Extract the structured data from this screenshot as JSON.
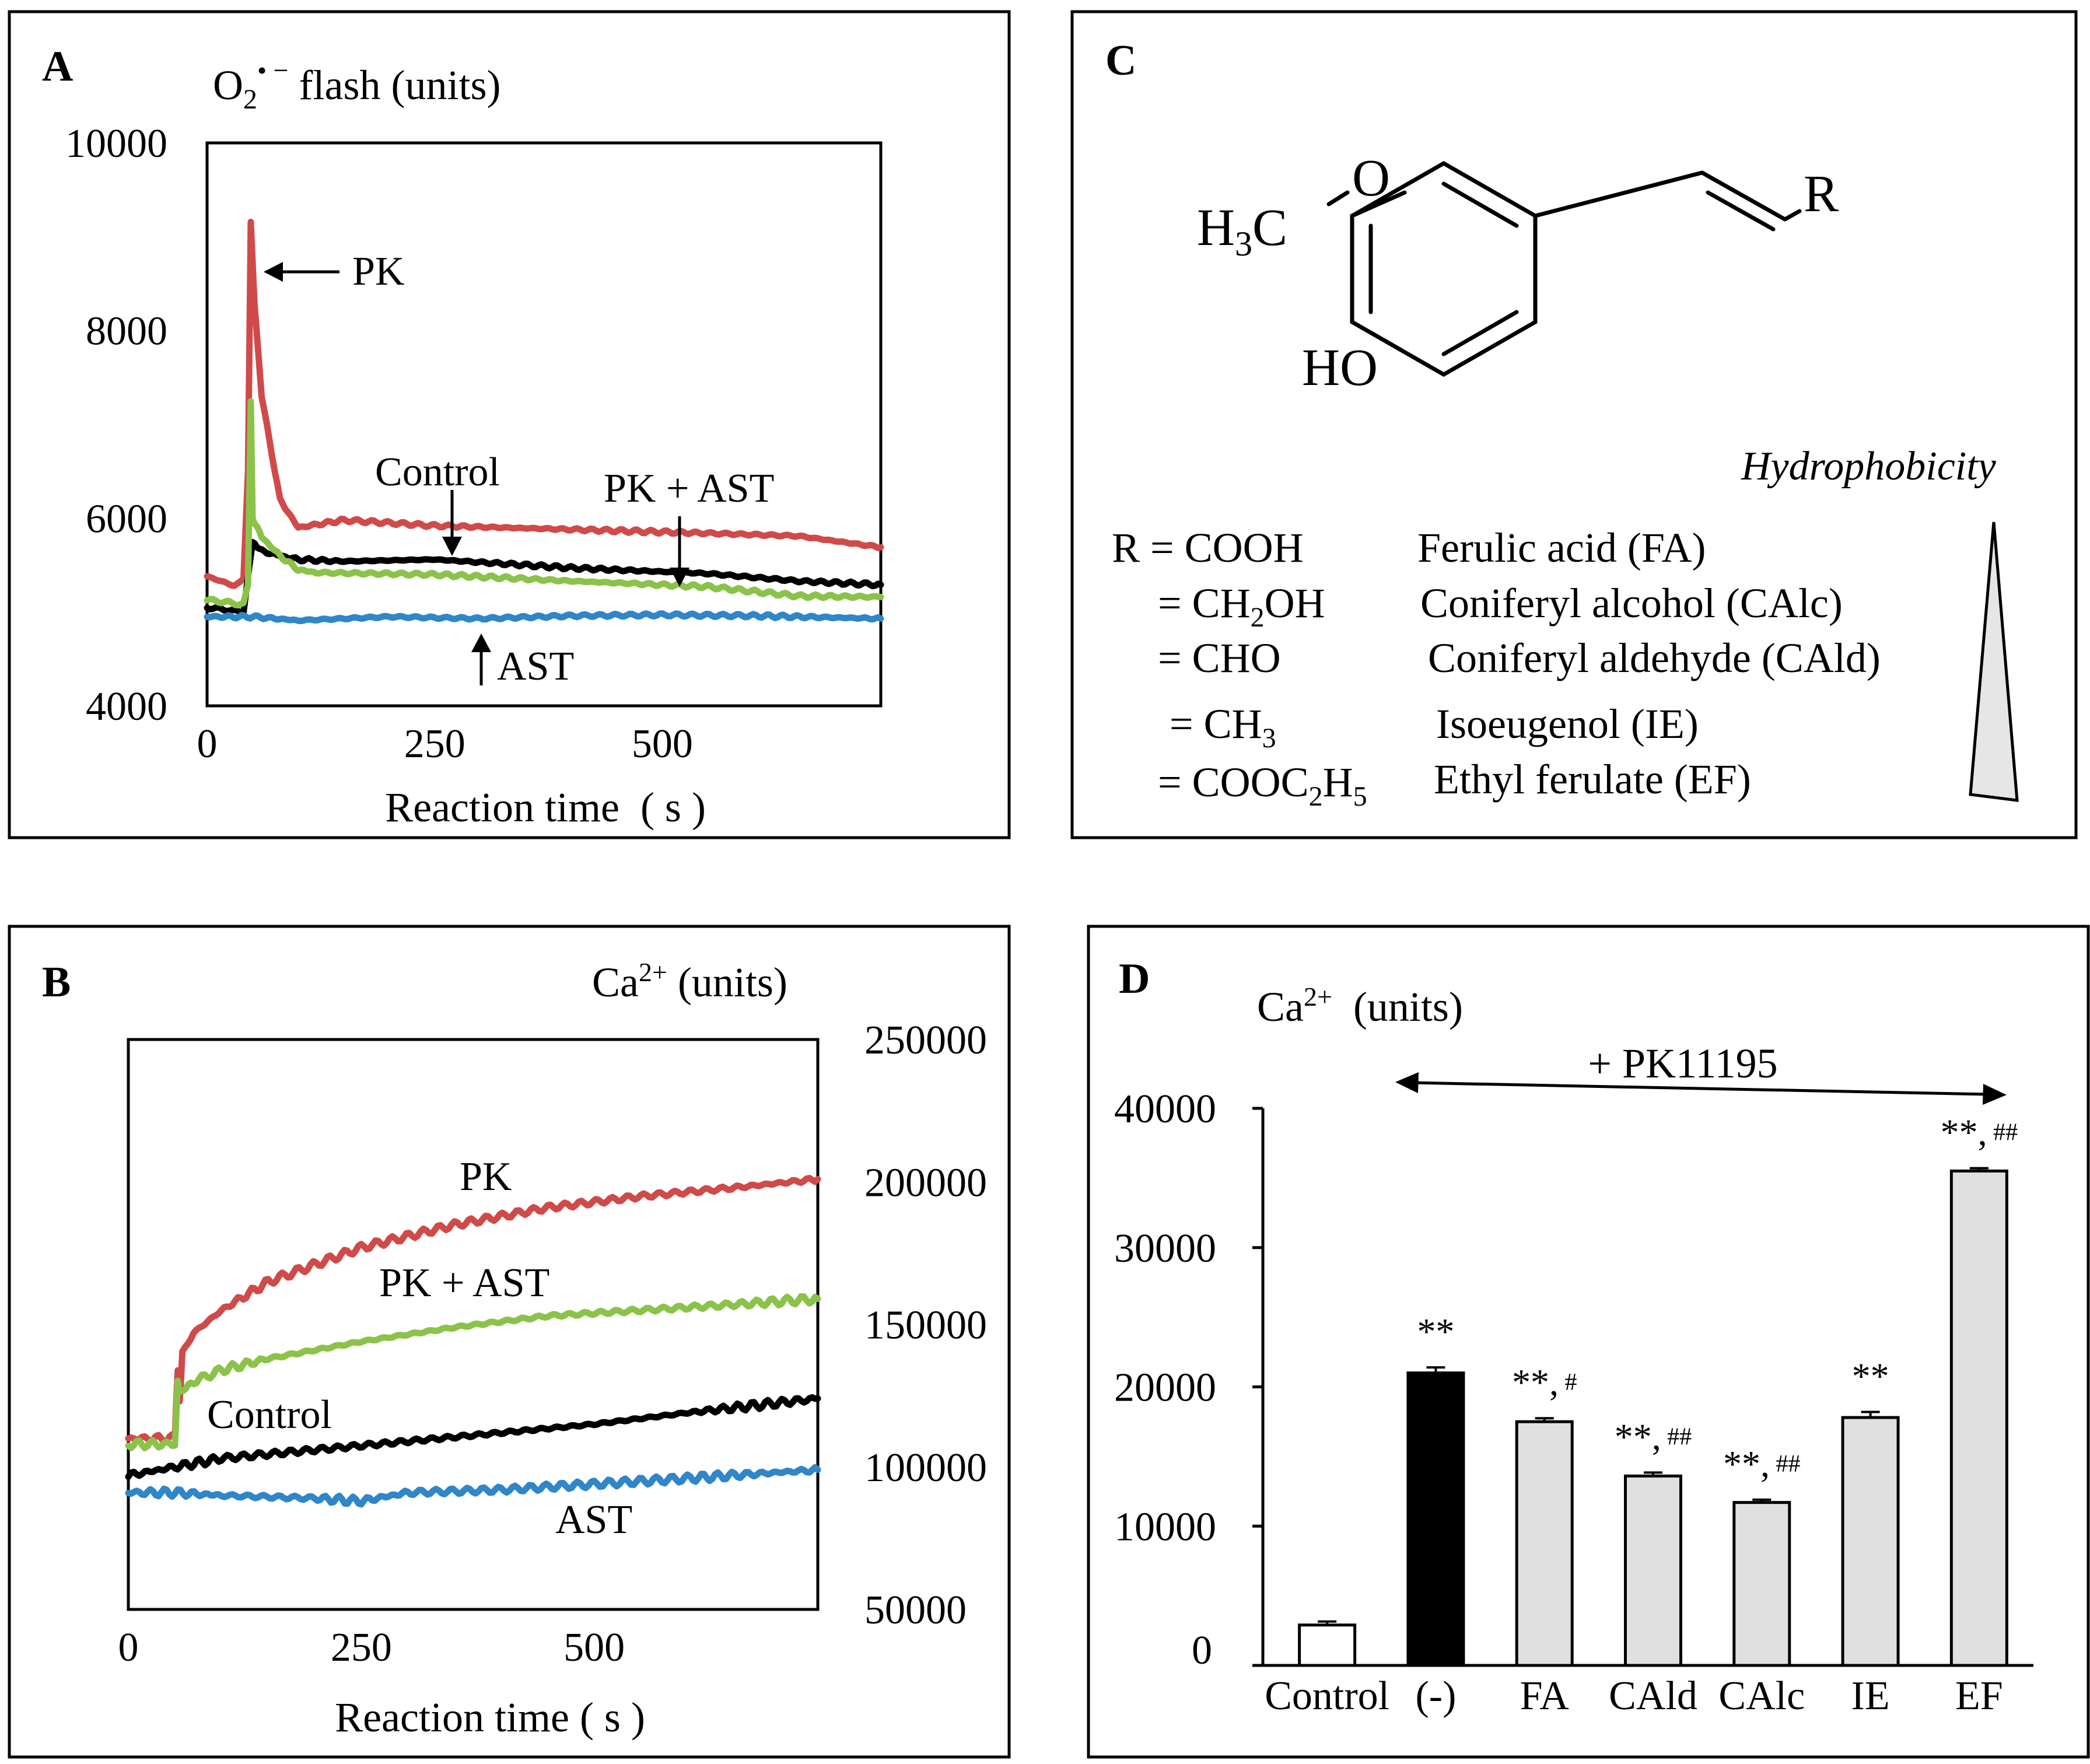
{
  "colors": {
    "pk": "#d04a4a",
    "pk_ast": "#8bc34a",
    "control": "#000000",
    "ast": "#2f86c8",
    "bar_light": "#e0e0e0",
    "bar_dark": "#000000",
    "bar_control": "#ffffff"
  },
  "panels": {
    "A": {
      "letter": "A"
    },
    "B": {
      "letter": "B"
    },
    "C": {
      "letter": "C"
    },
    "D": {
      "letter": "D"
    }
  },
  "chart_data": [
    {
      "panel": "A",
      "type": "line",
      "ylabel_parts": {
        "main": "O",
        "sub": "2",
        "sup": "• −",
        "rest": " flash (units)"
      },
      "xlabel": "Reaction time  ( s )",
      "xlim": [
        0,
        740
      ],
      "ylim": [
        4000,
        10000
      ],
      "xticks": [
        "0",
        "250",
        "500"
      ],
      "xtick_values": [
        0,
        250,
        500
      ],
      "yticks": [
        "4000",
        "6000",
        "8000",
        "10000"
      ],
      "ytick_values": [
        4000,
        6000,
        8000,
        10000
      ],
      "series": [
        {
          "name": "PK",
          "color": "#d04a4a",
          "x": [
            0,
            30,
            40,
            45,
            48,
            52,
            60,
            80,
            100,
            150,
            250,
            400,
            550,
            650,
            740
          ],
          "y": [
            5380,
            5280,
            5350,
            6500,
            9150,
            8300,
            7300,
            6200,
            5900,
            5980,
            5920,
            5880,
            5840,
            5810,
            5690
          ]
        },
        {
          "name": "Control",
          "color": "#000000",
          "x": [
            0,
            40,
            46,
            50,
            55,
            60,
            80,
            100,
            150,
            250,
            400,
            550,
            650,
            740
          ],
          "y": [
            5050,
            5000,
            5450,
            5750,
            5700,
            5650,
            5600,
            5560,
            5540,
            5560,
            5470,
            5410,
            5330,
            5290
          ]
        },
        {
          "name": "PK + AST",
          "color": "#8bc34a",
          "x": [
            0,
            40,
            45,
            48,
            50,
            55,
            60,
            80,
            100,
            120,
            250,
            400,
            550,
            650,
            740
          ],
          "y": [
            5130,
            5080,
            5300,
            7250,
            6000,
            5900,
            5800,
            5600,
            5450,
            5420,
            5400,
            5330,
            5270,
            5170,
            5160
          ]
        },
        {
          "name": "AST",
          "color": "#2f86c8",
          "x": [
            0,
            50,
            100,
            200,
            300,
            400,
            500,
            600,
            740
          ],
          "y": [
            4950,
            4950,
            4910,
            4950,
            4930,
            4960,
            4970,
            4960,
            4930
          ]
        }
      ],
      "annotations": [
        "PK",
        "Control",
        "PK + AST",
        "AST"
      ]
    },
    {
      "panel": "B",
      "type": "line",
      "ylabel_parts": {
        "main": "Ca",
        "sup": "2+",
        "rest": " (units)"
      },
      "xlabel": "Reaction time ( s )",
      "xlim": [
        0,
        740
      ],
      "ylim": [
        50000,
        250000
      ],
      "xticks": [
        "0",
        "250",
        "500"
      ],
      "xtick_values": [
        0,
        250,
        500
      ],
      "yticks": [
        "50000",
        "100000",
        "150000",
        "200000",
        "250000"
      ],
      "ytick_values": [
        50000,
        100000,
        150000,
        200000,
        250000
      ],
      "series": [
        {
          "name": "PK",
          "color": "#d04a4a",
          "x": [
            0,
            50,
            53,
            55,
            58,
            70,
            100,
            150,
            250,
            350,
            450,
            550,
            650,
            740
          ],
          "y": [
            110000,
            110000,
            135000,
            123000,
            140000,
            147000,
            155000,
            165000,
            177000,
            185000,
            191000,
            195000,
            198000,
            201000
          ]
        },
        {
          "name": "PK + AST",
          "color": "#8bc34a",
          "x": [
            0,
            50,
            53,
            56,
            70,
            100,
            150,
            250,
            350,
            450,
            550,
            650,
            740
          ],
          "y": [
            108000,
            108000,
            130000,
            126000,
            130000,
            134000,
            138000,
            144000,
            149000,
            153000,
            155000,
            157000,
            159000
          ]
        },
        {
          "name": "Control",
          "color": "#000000",
          "x": [
            0,
            50,
            100,
            200,
            300,
            400,
            500,
            600,
            740
          ],
          "y": [
            97000,
            100000,
            103000,
            106000,
            109000,
            112000,
            115000,
            119000,
            124000
          ]
        },
        {
          "name": "AST",
          "color": "#2f86c8",
          "x": [
            0,
            50,
            100,
            200,
            250,
            300,
            400,
            500,
            600,
            740
          ],
          "y": [
            91000,
            91000,
            90000,
            89000,
            88000,
            91000,
            92000,
            94000,
            96000,
            99000
          ]
        }
      ],
      "annotations": [
        "PK",
        "PK + AST",
        "Control",
        "AST"
      ]
    },
    {
      "panel": "D",
      "type": "bar",
      "ylabel_parts": {
        "main": "Ca",
        "sup": "2+",
        "rest": "  (units)"
      },
      "categories": [
        "Control",
        "(-)",
        "FA",
        "CAld",
        "CAlc",
        "IE",
        "EF"
      ],
      "values": [
        2900,
        21000,
        17500,
        13600,
        11700,
        17800,
        35500
      ],
      "errors": [
        250,
        400,
        250,
        250,
        200,
        400,
        200
      ],
      "bar_colors": [
        "#ffffff",
        "#000000",
        "#e0e0e0",
        "#e0e0e0",
        "#e0e0e0",
        "#e0e0e0",
        "#e0e0e0"
      ],
      "significance": [
        {
          "stars": "",
          "hash": ""
        },
        {
          "stars": "**",
          "hash": ""
        },
        {
          "stars": "**,",
          "hash": " #"
        },
        {
          "stars": "**,",
          "hash": " ##"
        },
        {
          "stars": "**,",
          "hash": " ##"
        },
        {
          "stars": "**",
          "hash": ""
        },
        {
          "stars": "**,",
          "hash": " ##"
        }
      ],
      "ylim": [
        0,
        40000
      ],
      "yticks": [
        "0",
        "10000",
        "20000",
        "30000",
        "40000"
      ],
      "ytick_values": [
        0,
        10000,
        20000,
        30000,
        40000
      ],
      "bracket_label": "+ PK11195"
    }
  ],
  "panel_C": {
    "structure_labels": {
      "ch3_main": "H",
      "ch3_sub": "3",
      "ch3_rest": "C",
      "oxygen": "O",
      "r": "R",
      "ho": "HO"
    },
    "hydrophobicity_label": "Hydrophobicity",
    "table": [
      {
        "prefix": "R = ",
        "group": [
          "COOH"
        ],
        "name": "Ferulic acid (FA)"
      },
      {
        "prefix": "= ",
        "group": [
          "CH",
          "2",
          "OH"
        ],
        "name": "Coniferyl alcohol (CAlc)"
      },
      {
        "prefix": "= ",
        "group": [
          "CHO"
        ],
        "name": "Coniferyl aldehyde (CAld)"
      },
      {
        "prefix": "= ",
        "group": [
          "CH",
          "3"
        ],
        "name": "Isoeugenol (IE)"
      },
      {
        "prefix": "= ",
        "group": [
          "COOC",
          "2",
          "H",
          "5"
        ],
        "name": "Ethyl ferulate (EF)"
      }
    ]
  }
}
